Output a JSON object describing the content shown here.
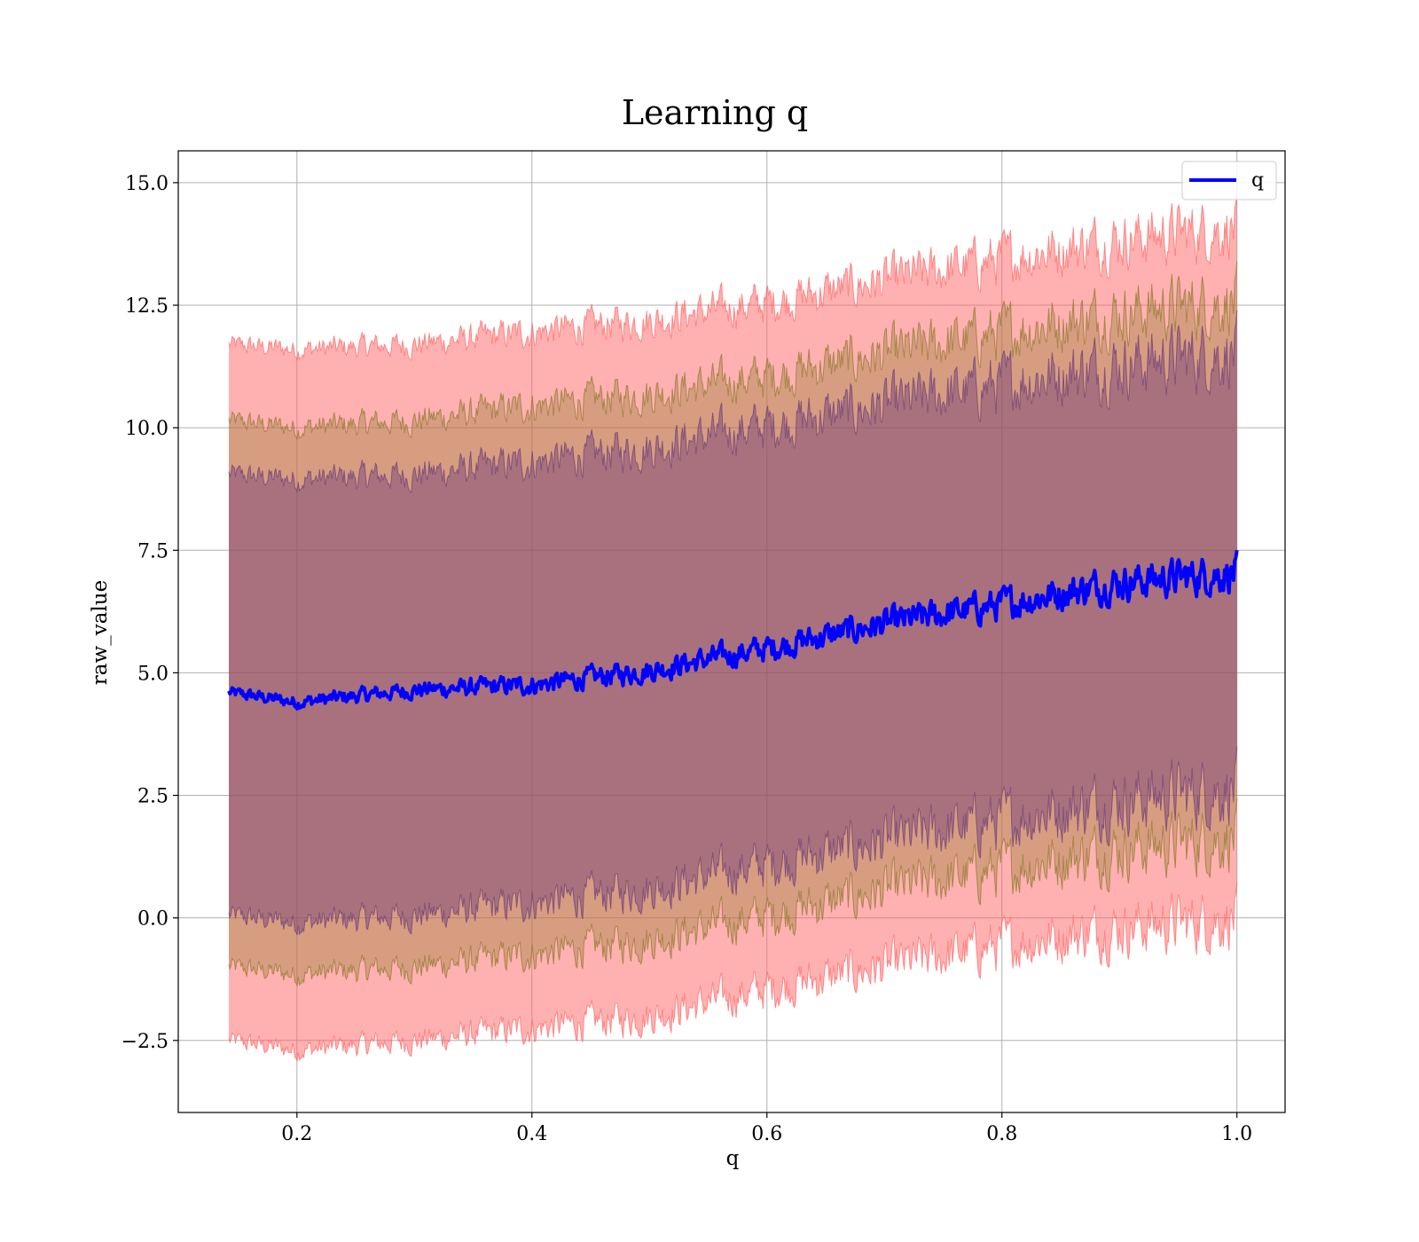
{
  "chart_data": {
    "type": "line",
    "title": "Learning q",
    "xlabel": "q",
    "ylabel": "raw_value",
    "xlim": [
      0.099,
      1.041
    ],
    "ylim": [
      -3.97,
      15.65
    ],
    "xticks": [
      0.2,
      0.4,
      0.6,
      0.8,
      1.0
    ],
    "xtick_labels": [
      "0.2",
      "0.4",
      "0.6",
      "0.8",
      "1.0"
    ],
    "yticks": [
      -2.5,
      0.0,
      2.5,
      5.0,
      7.5,
      10.0,
      12.5,
      15.0
    ],
    "ytick_labels": [
      "−2.5",
      "0.0",
      "2.5",
      "5.0",
      "7.5",
      "10.0",
      "12.5",
      "15.0"
    ],
    "grid": true,
    "legend": {
      "position": "top-right",
      "entries": [
        {
          "label": "q",
          "color": "#0000ff"
        }
      ]
    },
    "colors": {
      "line": "#0000ff",
      "band_outer": "#ff6464",
      "band_middle": "#8c7828",
      "band_inner": "#6e3c78"
    },
    "x": [
      0.142,
      0.2,
      0.3,
      0.4,
      0.5,
      0.6,
      0.7,
      0.8,
      0.9,
      1.0
    ],
    "series": [
      {
        "name": "q",
        "values": [
          4.6,
          4.4,
          4.65,
          4.75,
          5.05,
          5.5,
          6.0,
          6.4,
          6.85,
          7.05
        ]
      }
    ],
    "bands": [
      {
        "lower": [
          -2.5,
          -2.7,
          -2.5,
          -2.25,
          -2.0,
          -1.45,
          -1.0,
          -0.55,
          -0.2,
          0.0
        ],
        "upper": [
          11.7,
          11.6,
          11.7,
          11.95,
          12.2,
          12.55,
          13.0,
          13.45,
          13.85,
          14.1
        ]
      },
      {
        "lower": [
          -1.0,
          -1.15,
          -1.0,
          -0.75,
          -0.45,
          0.05,
          0.55,
          1.0,
          1.4,
          1.65
        ],
        "upper": [
          10.15,
          10.0,
          10.15,
          10.45,
          10.7,
          11.05,
          11.5,
          11.95,
          12.35,
          12.6
        ]
      },
      {
        "lower": [
          0.05,
          -0.1,
          0.05,
          0.3,
          0.6,
          1.1,
          1.55,
          2.0,
          2.4,
          2.65
        ],
        "upper": [
          9.05,
          8.95,
          9.05,
          9.3,
          9.6,
          10.05,
          10.45,
          10.9,
          11.3,
          11.55
        ]
      }
    ]
  }
}
